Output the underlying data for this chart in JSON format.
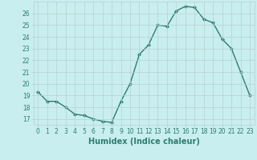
{
  "x": [
    0,
    1,
    2,
    3,
    4,
    5,
    6,
    7,
    8,
    9,
    10,
    11,
    12,
    13,
    14,
    15,
    16,
    17,
    18,
    19,
    20,
    21,
    22,
    23
  ],
  "y": [
    19.3,
    18.5,
    18.5,
    18.0,
    17.4,
    17.3,
    17.0,
    16.8,
    16.7,
    18.5,
    20.0,
    22.5,
    23.3,
    25.0,
    24.9,
    26.2,
    26.6,
    26.5,
    25.5,
    25.2,
    23.8,
    23.0,
    21.0,
    19.0
  ],
  "line_color": "#2e7d6e",
  "marker": "D",
  "marker_size": 2,
  "bg_color": "#c8eef0",
  "grid_color": "#b8d0d0",
  "xlabel": "Humidex (Indice chaleur)",
  "xlim": [
    -0.5,
    23.5
  ],
  "ylim": [
    16.5,
    27.0
  ],
  "yticks": [
    17,
    18,
    19,
    20,
    21,
    22,
    23,
    24,
    25,
    26
  ],
  "xticks": [
    0,
    1,
    2,
    3,
    4,
    5,
    6,
    7,
    8,
    9,
    10,
    11,
    12,
    13,
    14,
    15,
    16,
    17,
    18,
    19,
    20,
    21,
    22,
    23
  ],
  "tick_label_fontsize": 5.5,
  "xlabel_fontsize": 7,
  "line_width": 1.0,
  "tick_color": "#2e7d6e"
}
